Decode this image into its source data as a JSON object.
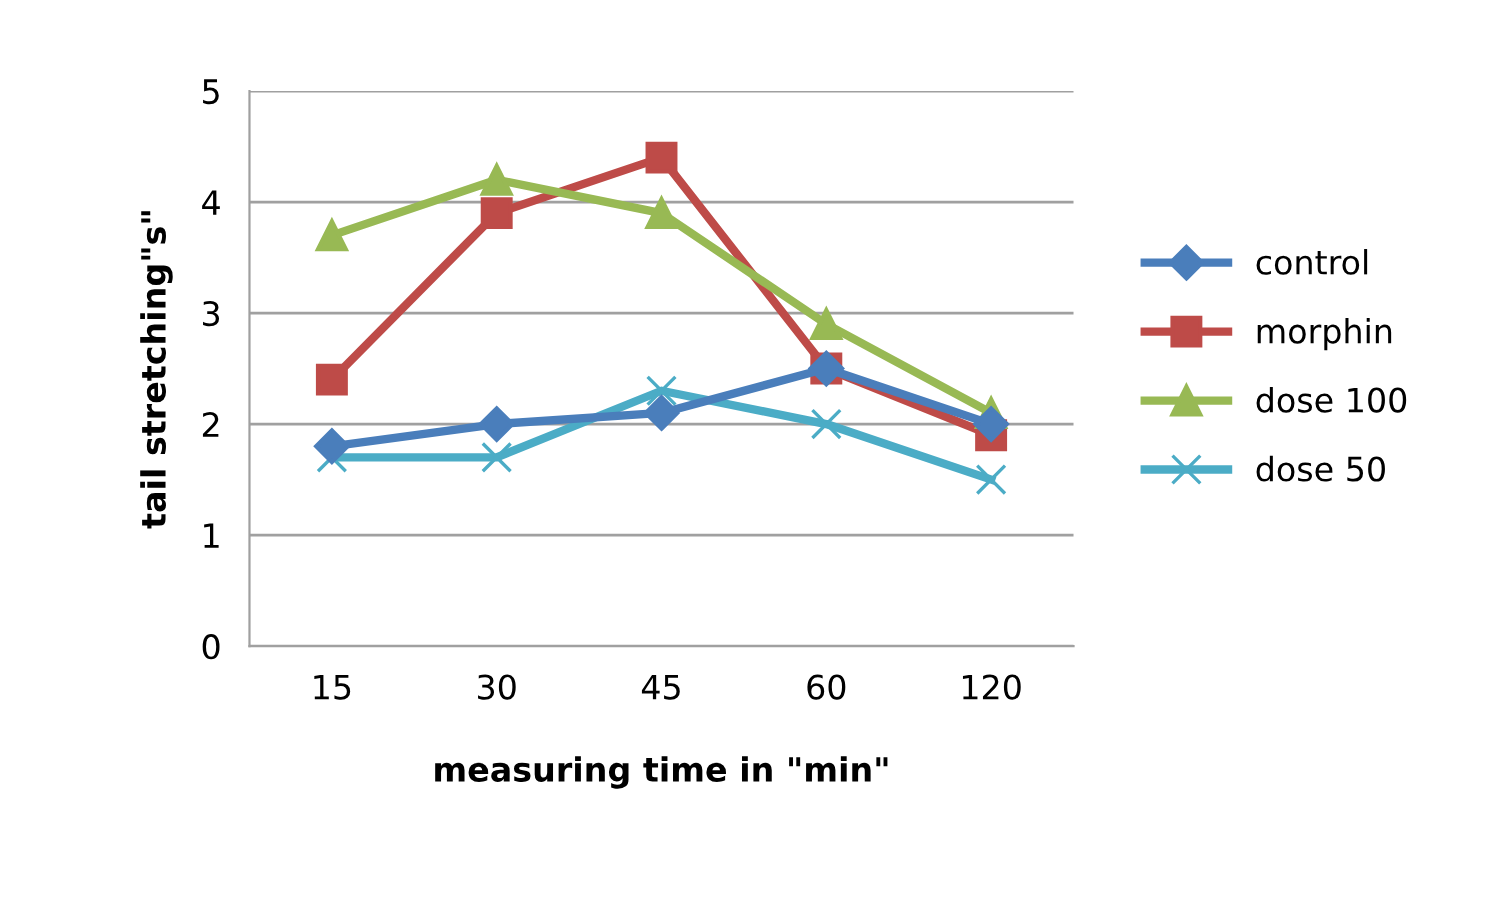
{
  "chart_data": {
    "type": "line",
    "xlabel": "measuring time in \"min\"",
    "ylabel": "tail stretching\"s\"",
    "categories": [
      "15",
      "30",
      "45",
      "60",
      "120"
    ],
    "series": [
      {
        "name": "control",
        "color": "#4a7ebb",
        "marker": "diamond",
        "values": [
          1.8,
          2.0,
          2.1,
          2.5,
          2.0
        ]
      },
      {
        "name": "morphin",
        "color": "#be4b48",
        "marker": "square",
        "values": [
          2.4,
          3.9,
          4.4,
          2.5,
          1.9
        ]
      },
      {
        "name": "dose 100",
        "color": "#98b954",
        "marker": "triangle",
        "values": [
          3.7,
          4.2,
          3.9,
          2.9,
          2.1
        ]
      },
      {
        "name": "dose 50",
        "color": "#4bacc6",
        "marker": "cross",
        "values": [
          1.7,
          1.7,
          2.3,
          2.0,
          1.5
        ]
      }
    ],
    "ylim": [
      0,
      5
    ],
    "yticks": [
      0,
      1,
      2,
      3,
      4,
      5
    ],
    "grid": "y",
    "legend": "right"
  }
}
